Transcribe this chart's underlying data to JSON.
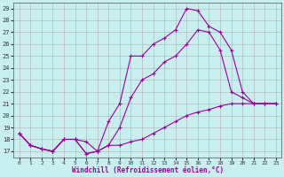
{
  "xlabel": "Windchill (Refroidissement éolien,°C)",
  "bg_color": "#c8eef0",
  "line_color": "#990099",
  "grid_color": "#b0b0b0",
  "ylim": [
    16.5,
    29.5
  ],
  "xlim": [
    -0.5,
    23.5
  ],
  "yticks": [
    17,
    18,
    19,
    20,
    21,
    22,
    23,
    24,
    25,
    26,
    27,
    28,
    29
  ],
  "xticks": [
    0,
    1,
    2,
    3,
    4,
    5,
    6,
    7,
    8,
    9,
    10,
    11,
    12,
    13,
    14,
    15,
    16,
    17,
    18,
    19,
    20,
    21,
    22,
    23
  ],
  "series": [
    {
      "x": [
        0,
        1,
        2,
        3,
        4,
        5,
        6,
        7,
        8,
        9,
        10,
        11,
        12,
        13,
        14,
        15,
        16,
        17,
        18,
        19,
        20,
        21,
        22,
        23
      ],
      "y": [
        18.5,
        17.5,
        17.2,
        17.0,
        18.0,
        18.0,
        17.8,
        17.0,
        19.5,
        21.0,
        25.0,
        25.0,
        26.0,
        26.5,
        27.2,
        29.0,
        28.8,
        27.5,
        27.0,
        25.5,
        22.0,
        21.0,
        21.0,
        21.0
      ]
    },
    {
      "x": [
        0,
        1,
        2,
        3,
        4,
        5,
        6,
        7,
        8,
        9,
        10,
        11,
        12,
        13,
        14,
        15,
        16,
        17,
        18,
        19,
        20,
        21,
        22,
        23
      ],
      "y": [
        18.5,
        17.5,
        17.2,
        17.0,
        18.0,
        18.0,
        16.8,
        17.0,
        17.5,
        19.0,
        21.5,
        23.0,
        23.5,
        24.5,
        25.0,
        26.0,
        27.2,
        27.0,
        25.5,
        22.0,
        21.5,
        21.0,
        21.0,
        21.0
      ]
    },
    {
      "x": [
        0,
        1,
        2,
        3,
        4,
        5,
        6,
        7,
        8,
        9,
        10,
        11,
        12,
        13,
        14,
        15,
        16,
        17,
        18,
        19,
        20,
        21,
        22,
        23
      ],
      "y": [
        18.5,
        17.5,
        17.2,
        17.0,
        18.0,
        18.0,
        16.8,
        17.0,
        17.5,
        17.5,
        17.8,
        18.0,
        18.5,
        19.0,
        19.5,
        20.0,
        20.3,
        20.5,
        20.8,
        21.0,
        21.0,
        21.0,
        21.0,
        21.0
      ]
    }
  ]
}
